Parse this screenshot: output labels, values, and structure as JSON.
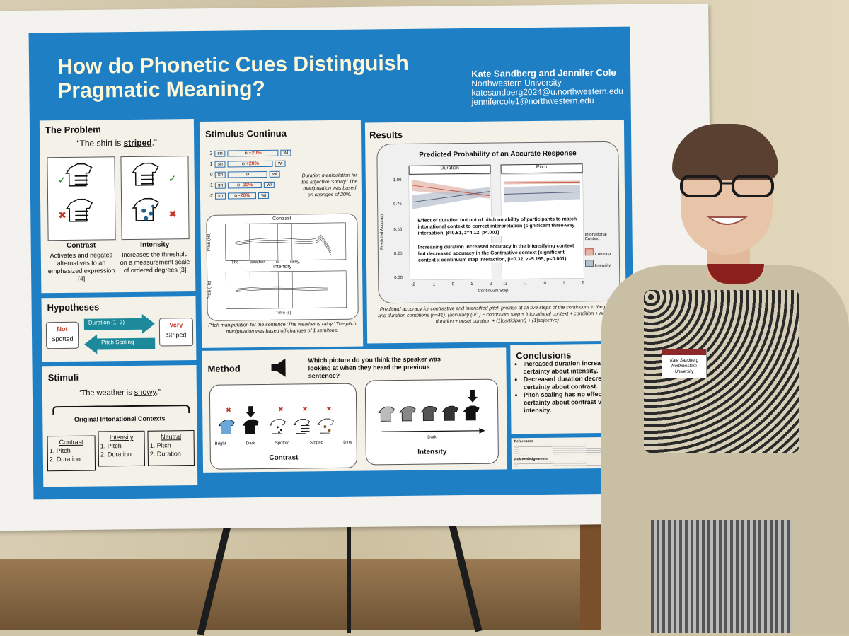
{
  "poster": {
    "title": "How do Phonetic Cues Distinguish Pragmatic Meaning?",
    "authors": "Kate Sandberg and Jennifer Cole",
    "affiliation": "Northwestern University",
    "email1": "katesandberg2024@u.northwestern.edu",
    "email2": "jennifercole1@northwestern.edu"
  },
  "problem": {
    "heading": "The Problem",
    "quote_prefix": "“The shirt is ",
    "quote_emph": "striped",
    "quote_suffix": ".”",
    "contrast_label": "Contrast",
    "contrast_desc": "Activates and negates alternatives to an emphasized expression [4]",
    "intensity_label": "Intensity",
    "intensity_desc": "Increases the threshold on a measurement scale of ordered degrees [3]"
  },
  "hypotheses": {
    "heading": "Hypotheses",
    "not": "Not",
    "spotted": "Spotted",
    "duration": "Duration (1, 2)",
    "pitch": "Pitch Scaling",
    "very": "Very",
    "striped": "Striped"
  },
  "stimuli": {
    "heading": "Stimuli",
    "quote_prefix": "“The weather is ",
    "quote_emph": "snowy",
    "quote_suffix": ".”",
    "contexts_label": "Original Intonational Contexts",
    "ctx": [
      {
        "name": "Contrast",
        "a": "1. Pitch",
        "b": "2. Duration"
      },
      {
        "name": "Intensity",
        "a": "1. Pitch",
        "b": "2. Duration"
      },
      {
        "name": "Neutral",
        "a": "1. Pitch",
        "b": "2. Duration"
      }
    ]
  },
  "continua": {
    "heading": "Stimulus Continua",
    "rows": [
      {
        "step": "2",
        "sn": "sn",
        "o": "o",
        "pct": "+20%",
        "wi": "wi"
      },
      {
        "step": "1",
        "sn": "sn",
        "o": "o",
        "pct": "+20%",
        "wi": "wi"
      },
      {
        "step": "0",
        "sn": "sn",
        "o": "o",
        "pct": "",
        "wi": "wi"
      },
      {
        "step": "-1",
        "sn": "sn",
        "o": "o",
        "pct": "-20%",
        "wi": "wi"
      },
      {
        "step": "-2",
        "sn": "sn",
        "o": "o",
        "pct": "-20%",
        "wi": "wi"
      }
    ],
    "note": "Duration manipulation for the adjective ‘snowy.’ The manipulation was based on changes of 20%.",
    "plot1_title": "Contrast",
    "plot2_title": "Intensity",
    "pitch_axis": "Pitch (Hz)",
    "time_axis": "Time (s)",
    "words": [
      "The",
      "weather",
      "is",
      "rainy."
    ],
    "caption": "Pitch manipulation for the sentence ‘The weather is rainy.’ The pitch manipulation was based off changes of 1 semitone."
  },
  "results": {
    "heading": "Results",
    "plot_title": "Predicted Probability of an Accurate Response",
    "facet1": "Duration",
    "facet2": "Pitch",
    "ylabel": "Predicted Accuracy",
    "xlabel": "Continuum Step",
    "yticks": [
      "1.00",
      "0.75",
      "0.50",
      "0.25",
      "0.00"
    ],
    "xticks": [
      "-2",
      "-1",
      "0",
      "1",
      "2"
    ],
    "legend_title": "Intonational Context",
    "legend1": "Contrast",
    "legend2": "Intensity",
    "bullet1": "Effect of duration but not of pitch on ability of participants to match intonational context to correct interpretation (significant three-way interaction, β=0.51, z=4.12, p<.001)",
    "bullet2": "Increasing duration increased accuracy in the Intensifying context but decreased accuracy in the Contrastive context (significant context x continuum step interaction, β=0.32, z=5.195, p<0.001).",
    "caption": "Predicted accuracy for contrastive and intensified pitch profiles at all five steps of the continuum in the pitch and duration conditions (n=41). (accuracy (0/1) ~ continuum step + intonational context + condition + nucleus duration + onset duration + (1|participant) + (1|adjective)"
  },
  "method": {
    "heading": "Method",
    "question": "Which picture do you think the speaker was looking at when they heard the previous sentence?",
    "contrast_items": [
      "Bright",
      "Dark",
      "Spotted",
      "Striped",
      "Dirty"
    ],
    "contrast_label": "Contrast",
    "intensity_axis": "Dark",
    "intensity_label": "Intensity"
  },
  "conclusions": {
    "heading": "Conclusions",
    "c1": "Increased duration increases certainty about intensity.",
    "c2": "Decreased duration decreases certainty about contrast.",
    "c3": "Pitch scaling has no effect on certainty about contrast vs. intensity.",
    "refs_label": "References",
    "ack_label": "Acknowledgements"
  },
  "badge": {
    "name": "Kate Sandberg",
    "org": "Northwestern University"
  },
  "colors": {
    "poster_blue": "#1f7fc4",
    "title_cream": "#fff8d8",
    "arrow_teal": "#1c8a9a",
    "accent_red": "#c0392b"
  }
}
